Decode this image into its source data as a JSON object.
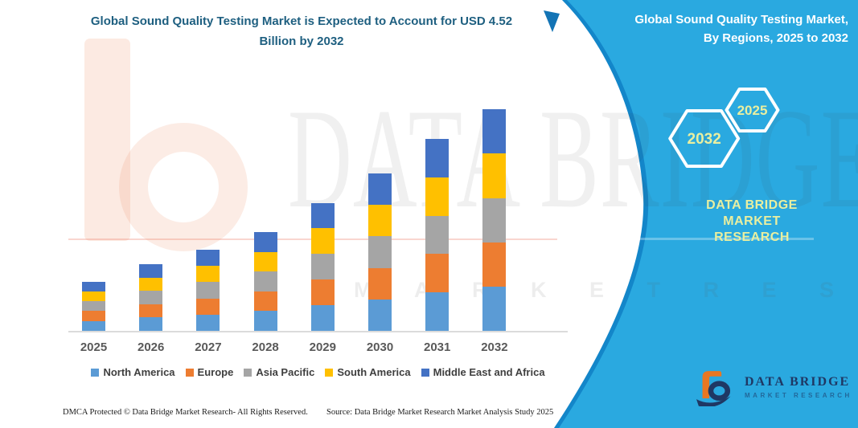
{
  "page": {
    "background": "#ffffff",
    "accent_blue": "#2AA9E0",
    "accent_blue_dark": "#1386C9"
  },
  "header": {
    "title_line1": "Global Sound Quality Testing Market is Expected to Account for USD 4.52",
    "title_line2": "Billion by 2032",
    "title_color": "#1E5F80"
  },
  "banner": {
    "heading_line1": "Global Sound Quality Testing Market,",
    "heading_line2": "By Regions, 2025 to 2032",
    "hexagons": [
      {
        "year": "2032"
      },
      {
        "year": "2025"
      }
    ],
    "brand_line1": "DATA BRIDGE MARKET",
    "brand_line2": "RESEARCH",
    "brand_color": "#E9EFA0"
  },
  "chart_data": {
    "type": "bar",
    "stacked": true,
    "title": "Global Sound Quality Testing Market, By Regions, 2025 to 2032",
    "value_note": "Expected to account for USD 4.52 Billion by 2032",
    "unit": "USD Billion",
    "categories": [
      "2025",
      "2026",
      "2027",
      "2028",
      "2029",
      "2030",
      "2031",
      "2032"
    ],
    "series": [
      {
        "name": "North America",
        "color": "#5B9BD5",
        "values": [
          0.2,
          0.27,
          0.33,
          0.4,
          0.52,
          0.64,
          0.78,
          0.9
        ]
      },
      {
        "name": "Europe",
        "color": "#ED7D31",
        "values": [
          0.2,
          0.27,
          0.33,
          0.4,
          0.52,
          0.64,
          0.78,
          0.9
        ]
      },
      {
        "name": "Asia Pacific",
        "color": "#A5A5A5",
        "values": [
          0.2,
          0.27,
          0.33,
          0.4,
          0.52,
          0.64,
          0.78,
          0.9
        ]
      },
      {
        "name": "South America",
        "color": "#FFC000",
        "values": [
          0.2,
          0.27,
          0.33,
          0.4,
          0.52,
          0.64,
          0.78,
          0.9
        ]
      },
      {
        "name": "Middle East and Africa",
        "color": "#4472C4",
        "values": [
          0.2,
          0.27,
          0.33,
          0.4,
          0.52,
          0.64,
          0.78,
          0.9
        ]
      }
    ],
    "totals": [
      0.98,
      1.34,
      1.66,
      1.99,
      2.61,
      3.21,
      3.88,
      4.52
    ],
    "axis": {
      "x_visible": true,
      "y_visible": false,
      "gridlines": false,
      "ylim": [
        0,
        5
      ]
    },
    "legend_position": "bottom"
  },
  "watermark": {
    "word1": "DATA BRIDGE",
    "word2": "M A R K E T   R E S E A R C H"
  },
  "footer": {
    "dmca": "DMCA Protected © Data Bridge Market Research-  All Rights Reserved.",
    "source": "Source: Data Bridge Market Research  Market Analysis Study 2025"
  },
  "logo": {
    "name": "DATA BRIDGE",
    "caption": "MARKET RESEARCH"
  }
}
